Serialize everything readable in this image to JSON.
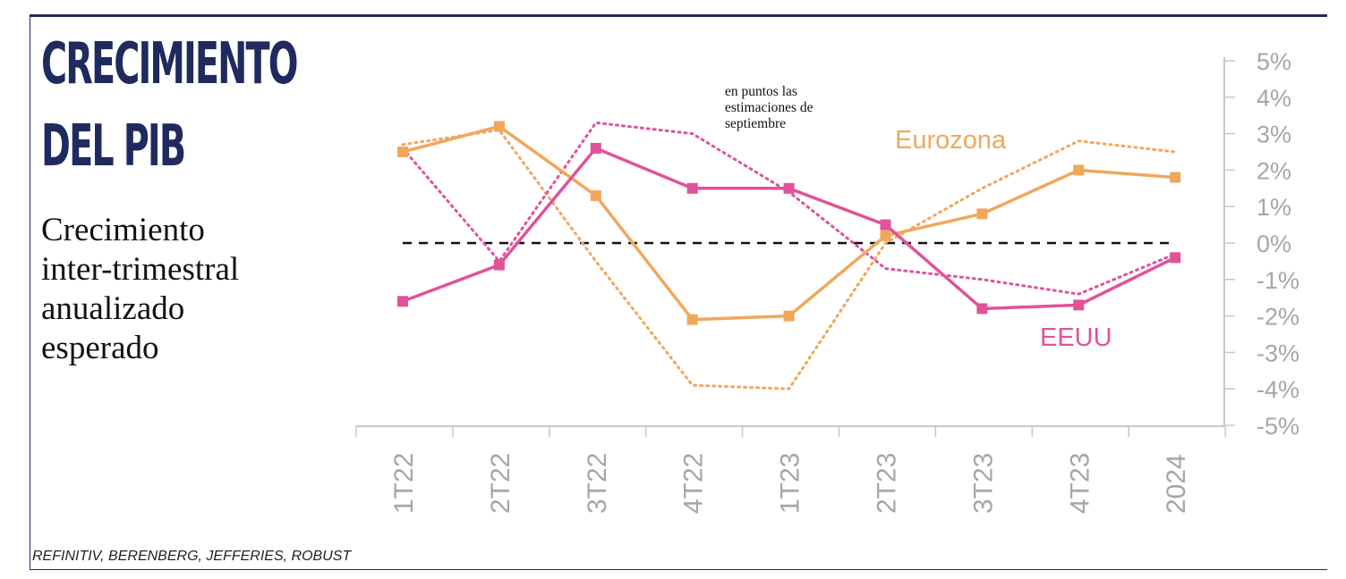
{
  "header": {
    "title_line1": "CRECIMIENTO",
    "title_line2": "DEL PIB",
    "subtitle": "Crecimiento inter-trimestral anualizado esperado"
  },
  "footer": {
    "source": "REFINITIV, BERENBERG, JEFFERIES, ROBUST"
  },
  "chart_data": {
    "type": "line",
    "categories": [
      "1T22",
      "2T22",
      "3T22",
      "4T22",
      "1T23",
      "2T23",
      "3T23",
      "4T23",
      "2024"
    ],
    "yticks": [
      "5%",
      "4%",
      "3%",
      "2%",
      "1%",
      "0%",
      "-1%",
      "-2%",
      "-3%",
      "-4%",
      "-5%"
    ],
    "yticks_values": [
      5,
      4,
      3,
      2,
      1,
      0,
      -1,
      -2,
      -3,
      -4,
      -5
    ],
    "ylim": [
      -5,
      5
    ],
    "annotation": "en puntos las estimaciones de septiembre",
    "series": [
      {
        "name": "Eurozona",
        "style": "solid",
        "color": "#f0a75c",
        "values": [
          2.5,
          3.2,
          1.3,
          -2.1,
          -2.0,
          0.2,
          0.8,
          2.0,
          1.8
        ]
      },
      {
        "name": "EEUU",
        "style": "solid",
        "color": "#e0529a",
        "values": [
          -1.6,
          -0.6,
          2.6,
          1.5,
          1.5,
          0.5,
          -1.8,
          -1.7,
          -0.4
        ]
      },
      {
        "style": "dotted",
        "color": "#f0a75c",
        "values": [
          2.7,
          3.1,
          -0.5,
          -3.9,
          -4.0,
          0.0,
          1.5,
          2.8,
          2.5
        ]
      },
      {
        "style": "dotted",
        "color": "#e0529a",
        "values": [
          2.6,
          -0.5,
          3.3,
          3.0,
          1.4,
          -0.7,
          -1.0,
          -1.4,
          -0.3
        ]
      }
    ],
    "reference_line": {
      "value": 0,
      "style": "dashed",
      "color": "#111111"
    },
    "grid": false,
    "legend": "inline labels"
  }
}
